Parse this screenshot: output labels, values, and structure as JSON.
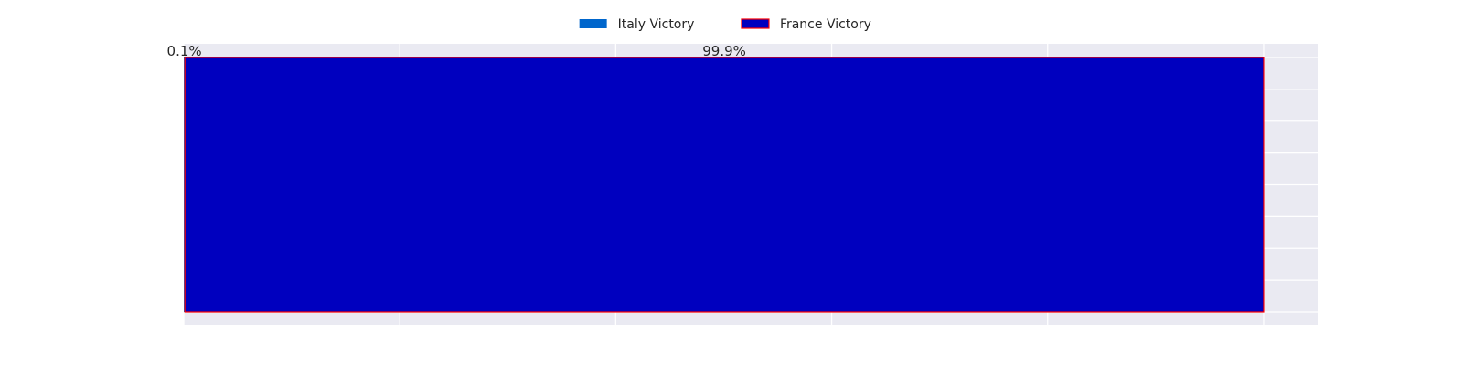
{
  "chart_data": {
    "type": "bar",
    "orientation": "horizontal",
    "stacked": true,
    "categories": [
      ""
    ],
    "series": [
      {
        "name": "Italy Victory",
        "values": [
          0.1
        ],
        "color": "#0066cc",
        "data_label": "0.1%"
      },
      {
        "name": "France Victory",
        "values": [
          99.9
        ],
        "color": "#0000bf",
        "edge_color": "#ff0000",
        "data_label": "99.9%"
      }
    ],
    "xlim": [
      0,
      105
    ],
    "x_ticks": [
      0,
      20,
      40,
      60,
      80,
      100
    ],
    "tick_labels_visible": false,
    "grid": true,
    "background": "#eaeaf2",
    "legend_position": "top-center",
    "title": "",
    "xlabel": "",
    "ylabel": ""
  }
}
